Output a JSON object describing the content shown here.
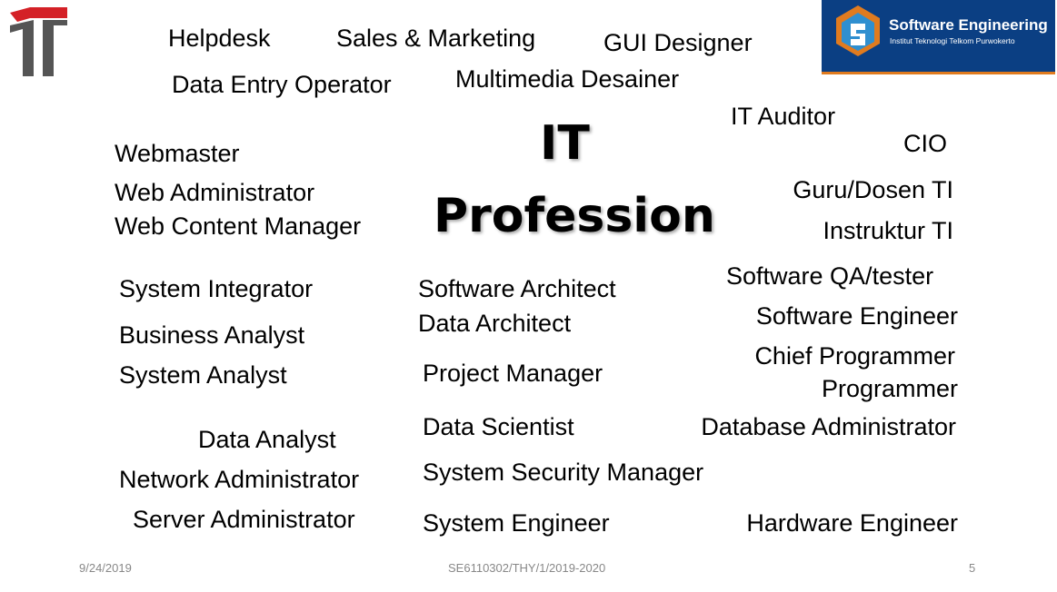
{
  "colors": {
    "brand_bg": "#0b3f83",
    "brand_accent": "#e07b1f",
    "logo_red": "#d42026",
    "logo_gray": "#555555",
    "text": "#000000",
    "footer_text": "#888888"
  },
  "icons": {
    "left_logo": "telkom-university-logo-icon",
    "brand_logo": "software-engineering-logo-icon"
  },
  "brand": {
    "title": "Software Engineering",
    "subtitle": "Institut Teknologi Telkom Purwokerto"
  },
  "title": {
    "line1": "IT",
    "line2": "Profession"
  },
  "professions": {
    "helpdesk": "Helpdesk",
    "sales_marketing": "Sales & Marketing",
    "gui_designer": "GUI Designer",
    "data_entry_operator": "Data Entry Operator",
    "multimedia_desainer": "Multimedia Desainer",
    "it_auditor": "IT Auditor",
    "cio": "CIO",
    "webmaster": "Webmaster",
    "web_administrator": "Web Administrator",
    "web_content_manager": "Web Content Manager",
    "guru_dosen_ti": "Guru/Dosen TI",
    "instruktur_ti": "Instruktur TI",
    "system_integrator": "System Integrator",
    "software_architect": "Software Architect",
    "software_qa_tester": "Software QA/tester",
    "software_engineer": "Software Engineer",
    "business_analyst": "Business Analyst",
    "data_architect": "Data Architect",
    "system_analyst": "System Analyst",
    "project_manager": "Project Manager",
    "chief_programmer": "Chief Programmer",
    "programmer": "Programmer",
    "data_analyst": "Data Analyst",
    "data_scientist": "Data Scientist",
    "database_administrator": "Database Administrator",
    "network_administrator": "Network Administrator",
    "system_security_manager": "System Security Manager",
    "server_administrator": "Server Administrator",
    "system_engineer": "System Engineer",
    "hardware_engineer": "Hardware Engineer"
  },
  "footer": {
    "date": "9/24/2019",
    "code": "SE6110302/THY/1/2019-2020",
    "page": "5"
  }
}
